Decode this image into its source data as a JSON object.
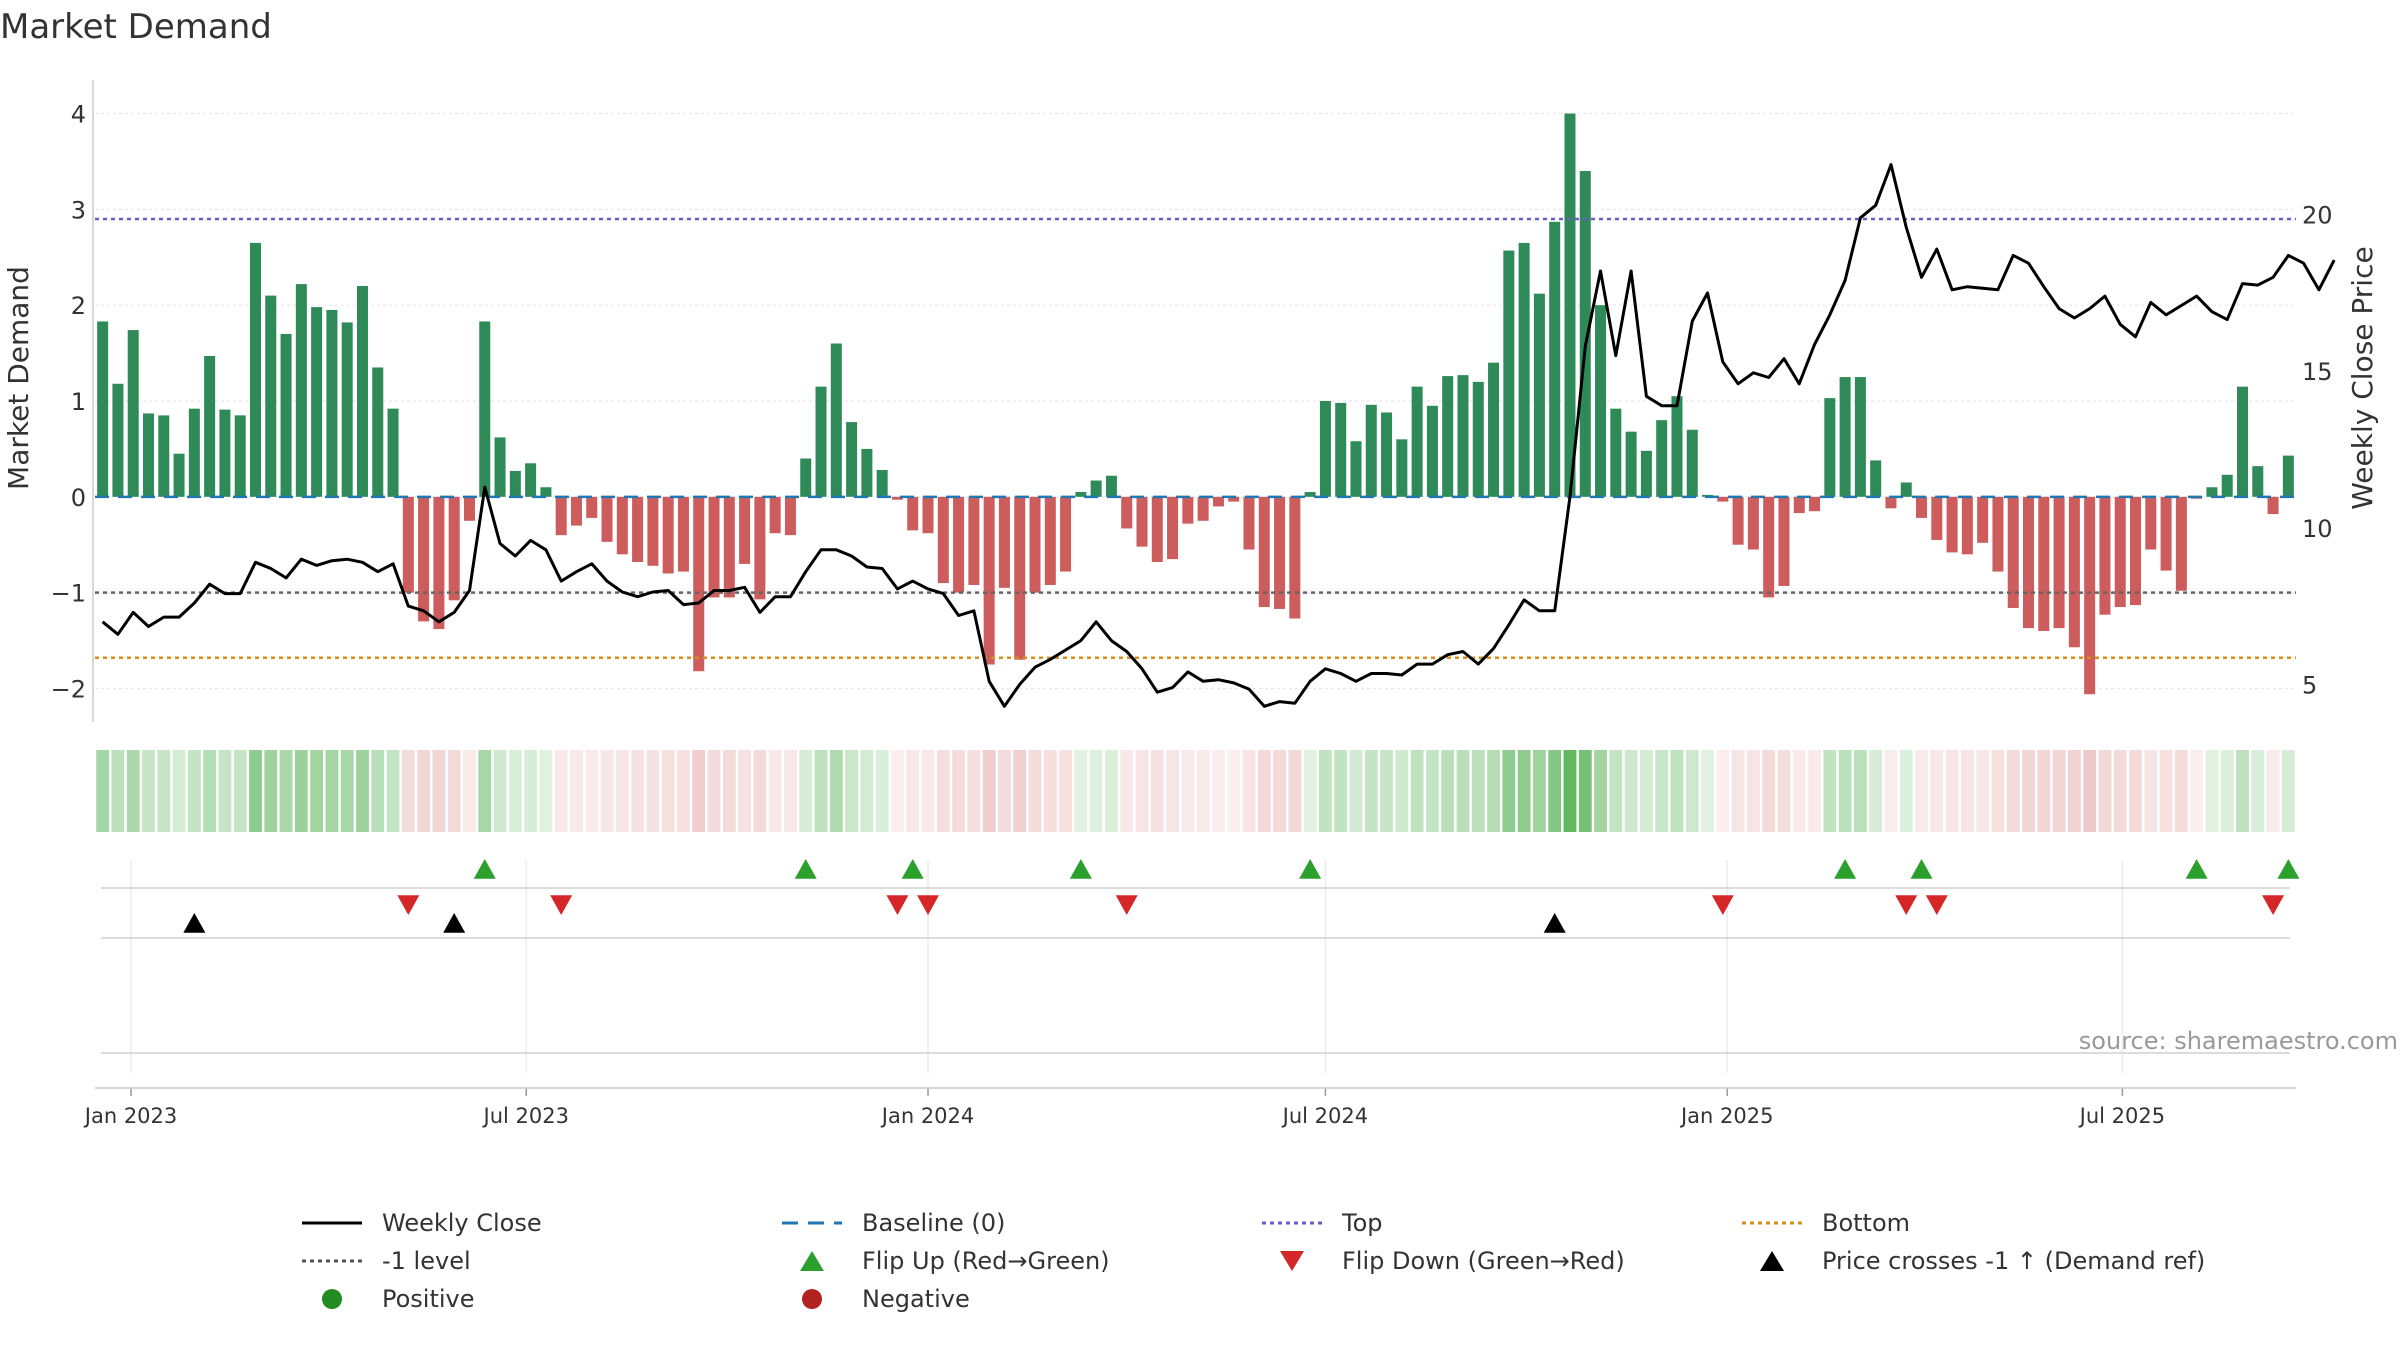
{
  "chart_data": {
    "type": "bar",
    "title": "Market Demand",
    "ylabel": "Market Demand",
    "y2label": "Weekly Close Price",
    "source": "source: sharemaestro.com",
    "ylim": [
      -2.35,
      4.35
    ],
    "y2lim": [
      3.8,
      24.3
    ],
    "yticks": [
      -2,
      -1,
      0,
      1,
      2,
      3,
      4
    ],
    "yticklabels": [
      "−2",
      "−1",
      "0",
      "1",
      "2",
      "3",
      "4"
    ],
    "y2ticks": [
      5,
      10,
      15,
      20
    ],
    "y2ticklabels": [
      "5",
      "10",
      "15",
      "20"
    ],
    "start_date": "2022-12-19",
    "week_days": 7,
    "xticks": [
      {
        "date": "2023-01-01",
        "label": "Jan 2023"
      },
      {
        "date": "2023-07-01",
        "label": "Jul 2023"
      },
      {
        "date": "2024-01-01",
        "label": "Jan 2024"
      },
      {
        "date": "2024-07-01",
        "label": "Jul 2024"
      },
      {
        "date": "2025-01-01",
        "label": "Jan 2025"
      },
      {
        "date": "2025-07-01",
        "label": "Jul 2025"
      }
    ],
    "top_level": 2.9,
    "bottom_level": -1.68,
    "minus_one_level": -1,
    "demand": [
      1.83,
      1.18,
      1.74,
      0.87,
      0.85,
      0.45,
      0.92,
      1.47,
      0.91,
      0.85,
      2.65,
      2.1,
      1.7,
      2.22,
      1.98,
      1.95,
      1.82,
      2.2,
      1.35,
      0.92,
      -1.0,
      -1.3,
      -1.38,
      -1.08,
      -0.25,
      1.83,
      0.62,
      0.27,
      0.35,
      0.1,
      -0.4,
      -0.3,
      -0.22,
      -0.47,
      -0.6,
      -0.68,
      -0.72,
      -0.8,
      -0.78,
      -1.82,
      -1.05,
      -1.05,
      -0.7,
      -1.07,
      -0.38,
      -0.4,
      0.4,
      1.15,
      1.6,
      0.78,
      0.5,
      0.28,
      -0.03,
      -0.35,
      -0.38,
      -0.9,
      -1.0,
      -0.92,
      -1.75,
      -0.95,
      -1.7,
      -1.0,
      -0.92,
      -0.78,
      0.05,
      0.17,
      0.22,
      -0.33,
      -0.52,
      -0.68,
      -0.65,
      -0.28,
      -0.25,
      -0.1,
      -0.05,
      -0.55,
      -1.15,
      -1.17,
      -1.27,
      0.05,
      1.0,
      0.98,
      0.58,
      0.96,
      0.88,
      0.6,
      1.15,
      0.95,
      1.26,
      1.27,
      1.2,
      1.4,
      2.57,
      2.65,
      2.12,
      2.87,
      4.0,
      3.4,
      2.0,
      0.92,
      0.68,
      0.48,
      0.8,
      1.05,
      0.7,
      0.02,
      -0.05,
      -0.5,
      -0.55,
      -1.05,
      -0.93,
      -0.17,
      -0.15,
      1.03,
      1.25,
      1.25,
      0.38,
      -0.12,
      0.15,
      -0.22,
      -0.45,
      -0.58,
      -0.6,
      -0.48,
      -0.78,
      -1.16,
      -1.37,
      -1.4,
      -1.37,
      -1.57,
      -2.06,
      -1.23,
      -1.15,
      -1.13,
      -0.55,
      -0.77,
      -0.98,
      -0.02,
      0.1,
      0.23,
      1.15,
      0.32,
      -0.18,
      0.43
    ],
    "close": [
      7.0,
      6.6,
      7.3,
      6.85,
      7.15,
      7.15,
      7.6,
      8.2,
      7.9,
      7.9,
      8.9,
      8.7,
      8.4,
      9.0,
      8.8,
      8.95,
      9.0,
      8.9,
      8.6,
      8.85,
      7.5,
      7.35,
      7.0,
      7.3,
      8.0,
      11.3,
      9.5,
      9.1,
      9.6,
      9.3,
      8.3,
      8.6,
      8.85,
      8.3,
      7.95,
      7.8,
      7.95,
      8.0,
      7.55,
      7.6,
      8.0,
      8.0,
      8.1,
      7.3,
      7.8,
      7.8,
      8.6,
      9.3,
      9.3,
      9.1,
      8.75,
      8.7,
      8.05,
      8.3,
      8.05,
      7.9,
      7.2,
      7.35,
      5.1,
      4.3,
      5.0,
      5.55,
      5.8,
      6.1,
      6.4,
      7.0,
      6.4,
      6.05,
      5.5,
      4.75,
      4.9,
      5.4,
      5.1,
      5.15,
      5.05,
      4.85,
      4.3,
      4.45,
      4.4,
      5.1,
      5.5,
      5.35,
      5.1,
      5.35,
      5.35,
      5.3,
      5.65,
      5.65,
      5.95,
      6.05,
      5.65,
      6.15,
      6.9,
      7.7,
      7.35,
      7.35,
      11.0,
      15.8,
      18.2,
      15.5,
      18.2,
      14.2,
      13.9,
      13.9,
      16.6,
      17.5,
      15.3,
      14.6,
      14.95,
      14.8,
      15.4,
      14.6,
      15.85,
      16.8,
      17.9,
      19.9,
      20.3,
      21.6,
      19.6,
      18.0,
      18.9,
      17.6,
      17.7,
      17.65,
      17.6,
      18.7,
      18.45,
      17.7,
      17.0,
      16.7,
      17.0,
      17.4,
      16.5,
      16.1,
      17.2,
      16.8,
      17.1,
      17.4,
      16.9,
      16.65,
      17.8,
      17.75,
      18.0,
      18.7,
      18.45,
      17.6,
      18.55
    ],
    "flip_up_idx": [
      25,
      46,
      53,
      64,
      79,
      114,
      119,
      137,
      143
    ],
    "flip_down_idx": [
      20,
      30,
      52,
      54,
      67,
      106,
      118,
      120,
      142
    ],
    "price_cross_idx": [
      6,
      23,
      95
    ],
    "legend": [
      {
        "key": "close",
        "label": "Weekly Close",
        "color": "#000000"
      },
      {
        "key": "baseline",
        "label": "Baseline (0)",
        "color": "#1f77b4"
      },
      {
        "key": "top",
        "label": "Top",
        "color": "#6a5acd"
      },
      {
        "key": "bottom",
        "label": "Bottom",
        "color": "#d4901a"
      },
      {
        "key": "minus1",
        "label": "-1 level",
        "color": "#555555"
      },
      {
        "key": "flipup",
        "label": "Flip Up (Red→Green)",
        "color": "#2ca02c"
      },
      {
        "key": "flipdown",
        "label": "Flip Down (Green→Red)",
        "color": "#d62728"
      },
      {
        "key": "cross",
        "label": "Price crosses -1 ↑ (Demand ref)",
        "color": "#000000"
      },
      {
        "key": "positive",
        "label": "Positive",
        "color": "#228b22"
      },
      {
        "key": "negative",
        "label": "Negative",
        "color": "#b22222"
      }
    ],
    "colors": {
      "pos_bar": "#2e8b57",
      "neg_bar": "#cd5c5c",
      "grid": "#e8e8e8",
      "axis": "#cccccc",
      "text": "#333333"
    }
  }
}
